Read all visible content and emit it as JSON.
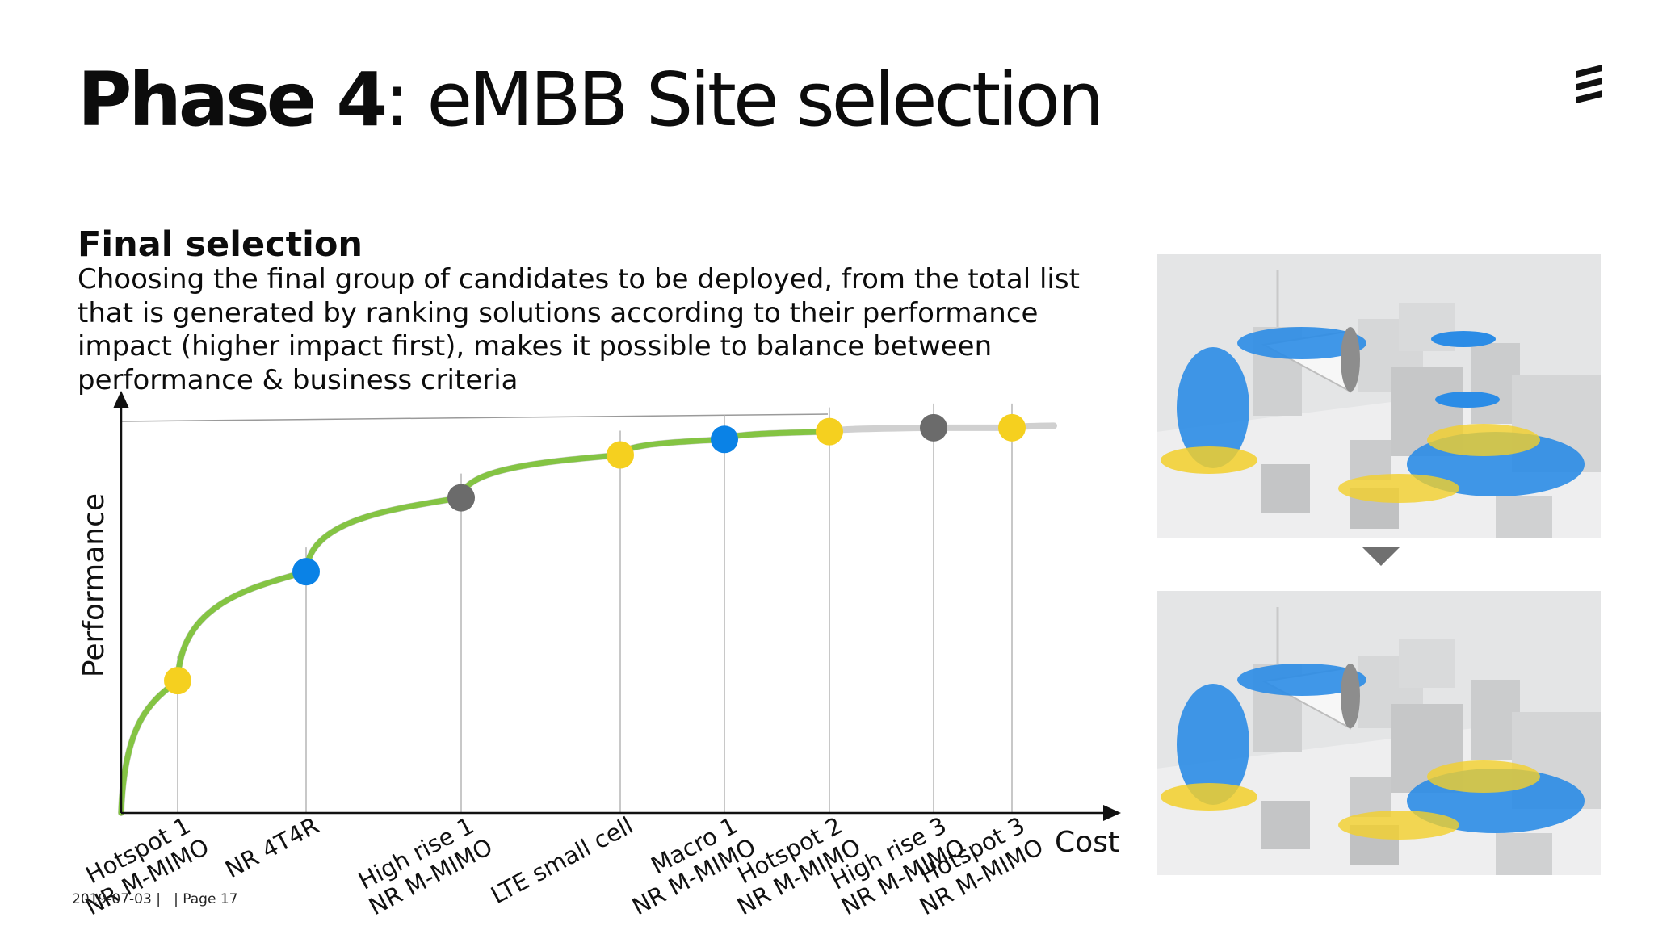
{
  "header": {
    "title_bold": "Phase 4",
    "title_rest": ": eMBB Site selection"
  },
  "section": {
    "heading": "Final selection",
    "body": "Choosing the final group of candidates to be deployed, from the total list that is generated by ranking solutions according to their performance impact (higher impact first), makes it possible to balance between performance & business criteria"
  },
  "footer": {
    "date": "2019-07-03",
    "page": "Page 17"
  },
  "colors": {
    "curve_green": "#84c443",
    "reference_grey": "#d0d0d0",
    "yellow": "#f5d01f",
    "blue": "#0a82e6",
    "grey": "#6b6b6b"
  },
  "chart_data": {
    "type": "scatter",
    "xlabel": "Cost",
    "ylabel": "Performance",
    "points": [
      {
        "x": 1,
        "y": 0.34,
        "label": [
          "Hotspot 1",
          "NR M-MIMO"
        ],
        "color": "yellow"
      },
      {
        "x": 2,
        "y": 0.62,
        "label": [
          "NR 4T4R"
        ],
        "color": "blue"
      },
      {
        "x": 3,
        "y": 0.81,
        "label": [
          "High rise 1",
          "NR M-MIMO"
        ],
        "color": "grey"
      },
      {
        "x": 4,
        "y": 0.92,
        "label": [
          "LTE small cell"
        ],
        "color": "yellow"
      },
      {
        "x": 5,
        "y": 0.96,
        "label": [
          "Macro 1",
          "NR M-MIMO"
        ],
        "color": "blue"
      },
      {
        "x": 6,
        "y": 0.98,
        "label": [
          "Hotspot 2",
          "NR M-MIMO"
        ],
        "color": "yellow"
      },
      {
        "x": 7,
        "y": 0.99,
        "label": [
          "High rise 3",
          "NR M-MIMO"
        ],
        "color": "grey"
      },
      {
        "x": 8,
        "y": 0.99,
        "label": [
          "Hotspot 3",
          "NR M-MIMO"
        ],
        "color": "yellow"
      }
    ],
    "selected_up_to": 6
  },
  "images": {
    "top": "city-deployment-before-icon",
    "bottom": "city-deployment-after-icon",
    "connector": "triangle-down-icon"
  }
}
